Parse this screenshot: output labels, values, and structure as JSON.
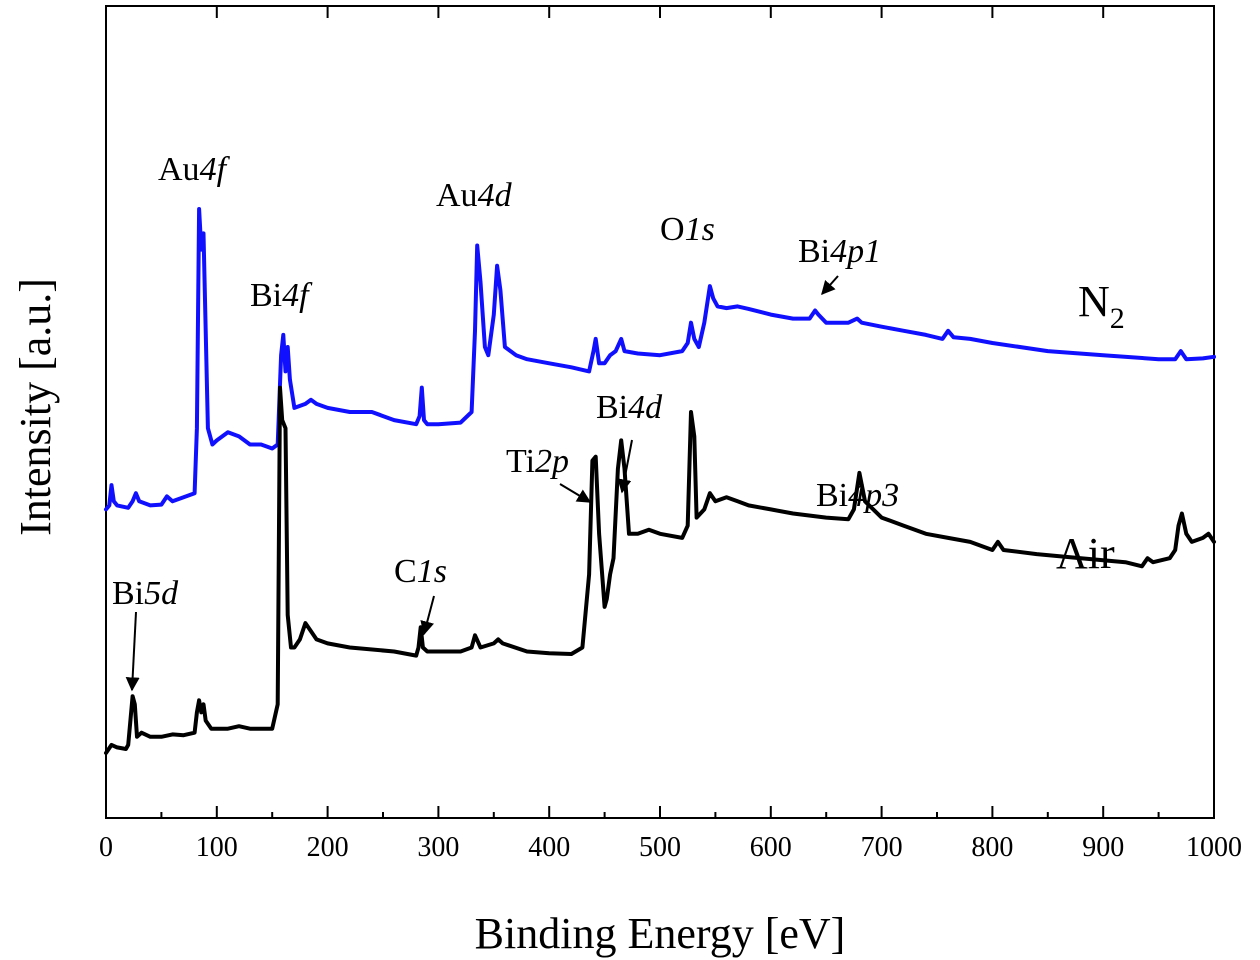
{
  "chart_data": {
    "type": "line",
    "xlabel": "Binding Energy [eV]",
    "ylabel": "Intensity [a.u.]",
    "xlim": [
      0,
      1000
    ],
    "ylim": [
      0,
      100
    ],
    "xticks": [
      0,
      100,
      200,
      300,
      400,
      500,
      600,
      700,
      800,
      900,
      1000
    ],
    "y_tick_labels_shown": false,
    "grid": false,
    "colors": {
      "N2": "#1010ff",
      "Air": "#000000",
      "axes": "#000000"
    },
    "series": [
      {
        "name": "N",
        "name_subscript": "2",
        "color": "#1010ff",
        "points": [
          [
            0,
            38
          ],
          [
            3,
            38.5
          ],
          [
            5,
            41
          ],
          [
            7,
            39
          ],
          [
            10,
            38.5
          ],
          [
            20,
            38.2
          ],
          [
            24,
            39
          ],
          [
            27,
            40
          ],
          [
            30,
            39
          ],
          [
            40,
            38.5
          ],
          [
            50,
            38.6
          ],
          [
            55,
            39.6
          ],
          [
            60,
            39
          ],
          [
            70,
            39.5
          ],
          [
            80,
            40
          ],
          [
            82,
            48
          ],
          [
            84,
            75
          ],
          [
            86,
            70
          ],
          [
            88,
            72
          ],
          [
            90,
            60
          ],
          [
            92,
            48
          ],
          [
            96,
            46
          ],
          [
            100,
            46.5
          ],
          [
            110,
            47.5
          ],
          [
            120,
            47
          ],
          [
            130,
            46
          ],
          [
            140,
            46
          ],
          [
            150,
            45.5
          ],
          [
            155,
            46
          ],
          [
            158,
            57
          ],
          [
            160,
            59.5
          ],
          [
            162,
            55
          ],
          [
            164,
            58
          ],
          [
            166,
            54
          ],
          [
            170,
            50.5
          ],
          [
            180,
            51
          ],
          [
            185,
            51.5
          ],
          [
            190,
            51
          ],
          [
            200,
            50.5
          ],
          [
            220,
            50
          ],
          [
            240,
            50
          ],
          [
            260,
            49
          ],
          [
            280,
            48.5
          ],
          [
            283,
            49.5
          ],
          [
            285,
            53
          ],
          [
            287,
            49
          ],
          [
            290,
            48.5
          ],
          [
            300,
            48.5
          ],
          [
            320,
            48.7
          ],
          [
            330,
            50
          ],
          [
            333,
            60
          ],
          [
            335,
            70.5
          ],
          [
            338,
            66
          ],
          [
            342,
            58
          ],
          [
            345,
            57
          ],
          [
            350,
            62
          ],
          [
            353,
            68
          ],
          [
            356,
            65
          ],
          [
            360,
            58
          ],
          [
            370,
            57
          ],
          [
            380,
            56.5
          ],
          [
            400,
            56
          ],
          [
            420,
            55.5
          ],
          [
            436,
            55
          ],
          [
            440,
            57.5
          ],
          [
            442,
            59
          ],
          [
            445,
            56
          ],
          [
            450,
            56
          ],
          [
            455,
            57
          ],
          [
            460,
            57.5
          ],
          [
            465,
            59
          ],
          [
            468,
            57.5
          ],
          [
            480,
            57.2
          ],
          [
            500,
            57
          ],
          [
            520,
            57.5
          ],
          [
            525,
            58.5
          ],
          [
            528,
            61
          ],
          [
            531,
            59
          ],
          [
            535,
            58
          ],
          [
            540,
            61
          ],
          [
            545,
            65.5
          ],
          [
            548,
            64
          ],
          [
            552,
            63
          ],
          [
            560,
            62.8
          ],
          [
            570,
            63
          ],
          [
            580,
            62.7
          ],
          [
            600,
            62
          ],
          [
            620,
            61.5
          ],
          [
            635,
            61.5
          ],
          [
            640,
            62.5
          ],
          [
            643,
            62
          ],
          [
            650,
            61
          ],
          [
            670,
            61
          ],
          [
            678,
            61.5
          ],
          [
            682,
            61
          ],
          [
            700,
            60.5
          ],
          [
            720,
            60
          ],
          [
            740,
            59.5
          ],
          [
            755,
            59
          ],
          [
            760,
            60
          ],
          [
            765,
            59.2
          ],
          [
            780,
            59
          ],
          [
            800,
            58.5
          ],
          [
            850,
            57.5
          ],
          [
            900,
            57
          ],
          [
            950,
            56.5
          ],
          [
            965,
            56.5
          ],
          [
            970,
            57.5
          ],
          [
            975,
            56.5
          ],
          [
            990,
            56.6
          ],
          [
            1000,
            56.8
          ]
        ]
      },
      {
        "name": "Air",
        "color": "#000000",
        "points": [
          [
            0,
            8
          ],
          [
            5,
            9
          ],
          [
            10,
            8.7
          ],
          [
            18,
            8.5
          ],
          [
            20,
            9
          ],
          [
            24,
            15
          ],
          [
            26,
            14
          ],
          [
            28,
            10
          ],
          [
            32,
            10.5
          ],
          [
            40,
            10
          ],
          [
            50,
            10
          ],
          [
            60,
            10.3
          ],
          [
            70,
            10.2
          ],
          [
            80,
            10.5
          ],
          [
            82,
            13
          ],
          [
            84,
            14.5
          ],
          [
            86,
            13
          ],
          [
            88,
            14
          ],
          [
            90,
            12
          ],
          [
            95,
            11
          ],
          [
            110,
            11
          ],
          [
            120,
            11.3
          ],
          [
            130,
            11
          ],
          [
            150,
            11
          ],
          [
            155,
            14
          ],
          [
            157,
            53
          ],
          [
            159,
            49
          ],
          [
            162,
            48
          ],
          [
            164,
            25
          ],
          [
            167,
            21
          ],
          [
            170,
            21
          ],
          [
            175,
            22
          ],
          [
            180,
            24
          ],
          [
            185,
            23
          ],
          [
            190,
            22
          ],
          [
            200,
            21.5
          ],
          [
            220,
            21
          ],
          [
            260,
            20.5
          ],
          [
            280,
            20
          ],
          [
            282,
            21
          ],
          [
            284,
            23.5
          ],
          [
            286,
            21
          ],
          [
            290,
            20.5
          ],
          [
            320,
            20.5
          ],
          [
            330,
            21
          ],
          [
            333,
            22.5
          ],
          [
            338,
            21
          ],
          [
            350,
            21.5
          ],
          [
            354,
            22
          ],
          [
            358,
            21.5
          ],
          [
            380,
            20.5
          ],
          [
            400,
            20.3
          ],
          [
            420,
            20.2
          ],
          [
            430,
            21
          ],
          [
            436,
            30
          ],
          [
            439,
            44
          ],
          [
            442,
            44.5
          ],
          [
            445,
            35
          ],
          [
            450,
            26
          ],
          [
            452,
            27
          ],
          [
            455,
            30
          ],
          [
            458,
            32
          ],
          [
            462,
            43
          ],
          [
            465,
            46.5
          ],
          [
            468,
            43
          ],
          [
            472,
            35
          ],
          [
            480,
            35
          ],
          [
            490,
            35.5
          ],
          [
            500,
            35
          ],
          [
            520,
            34.5
          ],
          [
            525,
            36
          ],
          [
            528,
            50
          ],
          [
            531,
            47
          ],
          [
            533,
            37
          ],
          [
            540,
            38
          ],
          [
            545,
            40
          ],
          [
            550,
            39
          ],
          [
            560,
            39.5
          ],
          [
            570,
            39
          ],
          [
            580,
            38.5
          ],
          [
            600,
            38
          ],
          [
            620,
            37.5
          ],
          [
            650,
            37
          ],
          [
            670,
            36.8
          ],
          [
            675,
            38
          ],
          [
            680,
            42.5
          ],
          [
            685,
            39
          ],
          [
            700,
            37
          ],
          [
            720,
            36
          ],
          [
            740,
            35
          ],
          [
            760,
            34.5
          ],
          [
            780,
            34
          ],
          [
            800,
            33
          ],
          [
            805,
            34
          ],
          [
            810,
            33
          ],
          [
            840,
            32.5
          ],
          [
            880,
            32
          ],
          [
            920,
            31.5
          ],
          [
            935,
            31
          ],
          [
            940,
            32
          ],
          [
            945,
            31.5
          ],
          [
            960,
            32
          ],
          [
            965,
            33
          ],
          [
            968,
            36
          ],
          [
            971,
            37.5
          ],
          [
            975,
            35
          ],
          [
            980,
            34
          ],
          [
            990,
            34.5
          ],
          [
            995,
            35
          ],
          [
            1000,
            34
          ]
        ]
      }
    ],
    "annotations": [
      {
        "label_base": "Au",
        "label_ital": "4f",
        "x": 84,
        "series": "N2",
        "arrow": false
      },
      {
        "label_base": "Bi",
        "label_ital": "4f",
        "x": 160,
        "series": "N2",
        "arrow": false
      },
      {
        "label_base": "Au",
        "label_ital": "4d",
        "x": 345,
        "series": "N2",
        "arrow": false
      },
      {
        "label_base": "O",
        "label_ital": "1s",
        "x": 530,
        "series": "N2",
        "arrow": false
      },
      {
        "label_base": "Bi",
        "label_ital": "4p1",
        "x": 643,
        "series": "N2",
        "arrow": true
      },
      {
        "label_base": "Bi",
        "label_ital": "5d",
        "x": 26,
        "series": "Air",
        "arrow": true
      },
      {
        "label_base": "C",
        "label_ital": "1s",
        "x": 285,
        "series": "Air",
        "arrow": true
      },
      {
        "label_base": "Ti",
        "label_ital": "2p",
        "x": 440,
        "series": "Air",
        "arrow": true
      },
      {
        "label_base": "Bi",
        "label_ital": "4d",
        "x": 465,
        "series": "Air",
        "arrow": true
      },
      {
        "label_base": "Bi",
        "label_ital": "4p3",
        "x": 680,
        "series": "Air",
        "arrow": false
      }
    ]
  }
}
